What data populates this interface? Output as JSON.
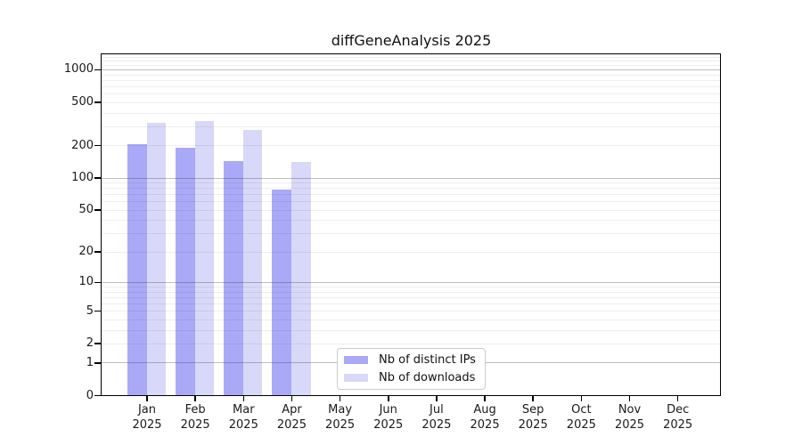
{
  "title": "diffGeneAnalysis 2025",
  "legend": {
    "items": [
      {
        "label": "Nb of distinct IPs",
        "color": "#a9a9f8"
      },
      {
        "label": "Nb of downloads",
        "color": "#d8d8f8"
      }
    ]
  },
  "chart_data": {
    "type": "bar",
    "title": "diffGeneAnalysis 2025",
    "categories": [
      "Jan 2025",
      "Feb 2025",
      "Mar 2025",
      "Apr 2025",
      "May 2025",
      "Jun 2025",
      "Jul 2025",
      "Aug 2025",
      "Sep 2025",
      "Oct 2025",
      "Nov 2025",
      "Dec 2025"
    ],
    "series": [
      {
        "name": "Nb of distinct IPs",
        "color": "#a9a9f8",
        "values": [
          203,
          190,
          142,
          78,
          0,
          0,
          0,
          0,
          0,
          0,
          0,
          0
        ]
      },
      {
        "name": "Nb of downloads",
        "color": "#d8d8f8",
        "values": [
          320,
          335,
          277,
          140,
          0,
          0,
          0,
          0,
          0,
          0,
          0,
          0
        ]
      }
    ],
    "xlabel": "",
    "ylabel": "",
    "y_axis": {
      "scale": "log10(1+value)",
      "tick_values": [
        1000,
        500,
        200,
        100,
        50,
        20,
        10,
        5,
        2,
        1,
        0
      ],
      "tick_labels": [
        "1000",
        "500",
        "200",
        "100",
        "50",
        "20",
        "10",
        "5",
        "2",
        "1",
        "0"
      ],
      "top_value": 1400
    },
    "grid": {
      "major_values": [
        1,
        10,
        100,
        1000
      ],
      "minor_values": [
        2,
        3,
        4,
        5,
        6,
        7,
        8,
        9,
        20,
        30,
        40,
        50,
        60,
        70,
        80,
        90,
        200,
        300,
        400,
        500,
        600,
        700,
        800,
        900,
        1100,
        1200,
        1300
      ]
    },
    "legend_position": "inside-bottom-center"
  }
}
